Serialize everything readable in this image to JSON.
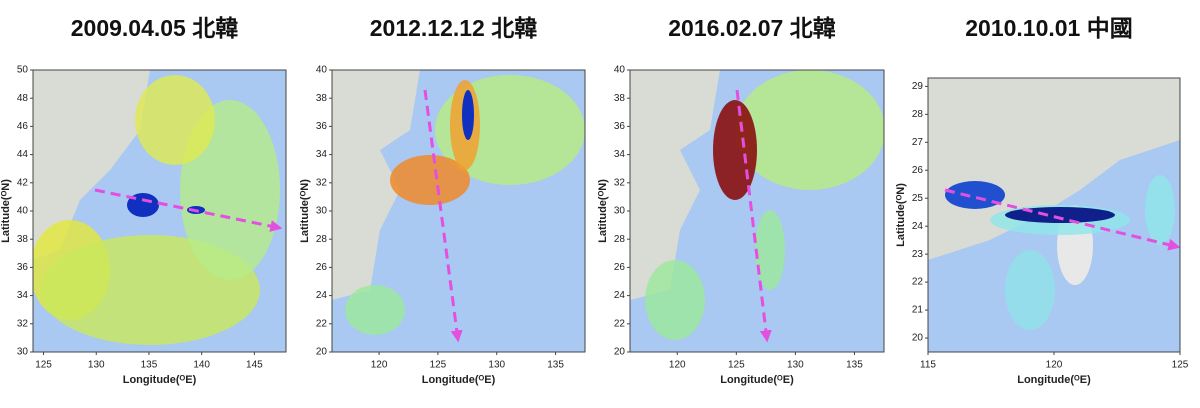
{
  "chart_data": [
    {
      "type": "map",
      "title": "2009.04.05 北韓",
      "xlabel": "Longitude(ᴼE)",
      "ylabel": "Latitude(ᴼN)",
      "xlim": [
        124,
        148
      ],
      "xticks": [
        125,
        130,
        135,
        140,
        145
      ],
      "ylim": [
        30,
        50
      ],
      "yticks": [
        30,
        32,
        34,
        36,
        38,
        40,
        42,
        44,
        46,
        48,
        50
      ]
    },
    {
      "type": "map",
      "title": "2012.12.12 北韓",
      "xlabel": "Longitude(ᴼE)",
      "ylabel": "Latitude(ᴼN)",
      "xlim": [
        116,
        137.5
      ],
      "xticks": [
        120,
        125,
        130,
        135
      ],
      "ylim": [
        20,
        40
      ],
      "yticks": [
        20,
        22,
        24,
        26,
        28,
        30,
        32,
        34,
        36,
        38,
        40
      ]
    },
    {
      "type": "map",
      "title": "2016.02.07 北韓",
      "xlabel": "Longitude(ᴼE)",
      "ylabel": "Latitude(ᴼN)",
      "xlim": [
        116,
        137.5
      ],
      "xticks": [
        120,
        125,
        130,
        135
      ],
      "ylim": [
        20,
        40
      ],
      "yticks": [
        20,
        22,
        24,
        26,
        28,
        30,
        32,
        34,
        36,
        38,
        40
      ]
    },
    {
      "type": "map",
      "title": "2010.10.01 中國",
      "xlabel": "Longitude(ᴼE)",
      "ylabel": "Latitude(ᴼN)",
      "xlim": [
        115,
        125
      ],
      "xticks": [
        115,
        120,
        125
      ],
      "ylim": [
        19.5,
        29.3
      ],
      "yticks": [
        20,
        21,
        22,
        23,
        24,
        25,
        26,
        27,
        28,
        29
      ]
    }
  ]
}
